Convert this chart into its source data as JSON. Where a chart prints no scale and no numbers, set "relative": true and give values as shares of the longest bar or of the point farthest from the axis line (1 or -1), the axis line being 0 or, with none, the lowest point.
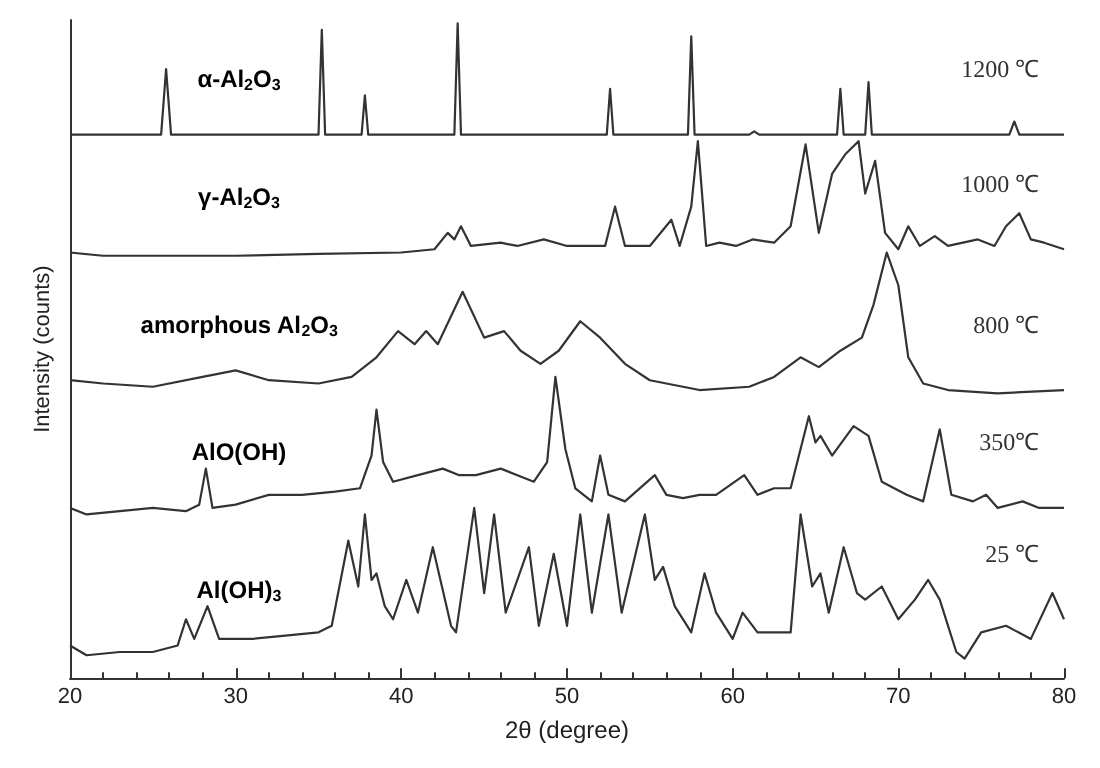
{
  "chart_data": {
    "type": "line",
    "relative": true,
    "xlabel": "2θ (degree)",
    "ylabel": "Intensity (counts)",
    "xlim": [
      20,
      80
    ],
    "xticks": [
      20,
      30,
      40,
      50,
      60,
      70,
      80
    ],
    "grid": false,
    "legend": false,
    "marker": "none",
    "line_style": "solid",
    "series": [
      {
        "name": "1200 ℃",
        "color": "#333333",
        "x": [
          20,
          25.5,
          25.8,
          26.1,
          35,
          35.2,
          35.4,
          37.6,
          37.8,
          38,
          43.2,
          43.4,
          43.6,
          52.4,
          52.6,
          52.8,
          57.3,
          57.5,
          57.7,
          61,
          61.3,
          61.6,
          66.3,
          66.5,
          66.7,
          68,
          68.2,
          68.4,
          76.7,
          77,
          77.3,
          80
        ],
        "values": [
          0.83,
          0.83,
          0.93,
          0.83,
          0.83,
          0.99,
          0.83,
          0.83,
          0.89,
          0.83,
          0.83,
          1,
          0.83,
          0.83,
          0.9,
          0.83,
          0.83,
          0.98,
          0.83,
          0.83,
          0.835,
          0.83,
          0.83,
          0.9,
          0.83,
          0.83,
          0.91,
          0.83,
          0.83,
          0.85,
          0.83,
          0.83
        ]
      },
      {
        "name": "1000 ℃",
        "color": "#333333",
        "x": [
          20,
          22,
          25,
          30,
          35,
          40,
          42,
          42.8,
          43.2,
          43.6,
          44.2,
          46,
          47,
          48.6,
          50,
          52.3,
          52.9,
          53.5,
          55,
          56.3,
          56.8,
          57.5,
          57.9,
          58.4,
          59.2,
          60.2,
          61.2,
          62.5,
          63.5,
          64.4,
          65.2,
          66,
          66.8,
          67.6,
          68,
          68.6,
          69.2,
          70,
          70.6,
          71.3,
          72.2,
          73,
          74.8,
          75.8,
          76.5,
          77.3,
          78,
          78.8,
          80
        ],
        "values": [
          0.65,
          0.645,
          0.645,
          0.645,
          0.648,
          0.65,
          0.655,
          0.68,
          0.67,
          0.69,
          0.66,
          0.665,
          0.66,
          0.67,
          0.66,
          0.66,
          0.72,
          0.66,
          0.66,
          0.7,
          0.66,
          0.72,
          0.82,
          0.66,
          0.665,
          0.66,
          0.67,
          0.665,
          0.69,
          0.815,
          0.68,
          0.77,
          0.8,
          0.82,
          0.74,
          0.79,
          0.68,
          0.655,
          0.69,
          0.66,
          0.675,
          0.66,
          0.67,
          0.66,
          0.69,
          0.71,
          0.67,
          0.665,
          0.655
        ]
      },
      {
        "name": "800 ℃",
        "color": "#333333",
        "x": [
          20,
          22,
          25,
          28,
          30,
          32,
          35,
          37,
          38.5,
          39.8,
          40.8,
          41.5,
          42.2,
          43.7,
          45,
          46.2,
          47.2,
          48.4,
          49.5,
          50.8,
          52,
          53.5,
          55,
          58,
          61,
          62.5,
          64.1,
          65.2,
          66.5,
          67.8,
          68.5,
          69.3,
          70,
          70.6,
          71.5,
          73,
          76,
          80
        ],
        "values": [
          0.455,
          0.45,
          0.445,
          0.46,
          0.47,
          0.455,
          0.45,
          0.46,
          0.49,
          0.53,
          0.51,
          0.53,
          0.51,
          0.59,
          0.52,
          0.53,
          0.5,
          0.48,
          0.5,
          0.545,
          0.52,
          0.48,
          0.455,
          0.44,
          0.445,
          0.46,
          0.49,
          0.475,
          0.5,
          0.52,
          0.57,
          0.65,
          0.6,
          0.49,
          0.45,
          0.44,
          0.435,
          0.44
        ]
      },
      {
        "name": "350℃",
        "color": "#333333",
        "x": [
          20,
          21,
          23,
          25,
          27,
          27.8,
          28.2,
          28.6,
          30,
          32,
          34,
          36,
          37.5,
          38.2,
          38.5,
          38.9,
          39.5,
          41,
          42.5,
          43.5,
          44.5,
          46,
          47,
          48,
          48.8,
          49.3,
          49.9,
          50.5,
          51.5,
          52,
          52.5,
          53.5,
          55.3,
          56,
          57,
          58,
          59,
          60.7,
          61.5,
          62.5,
          63.5,
          64.6,
          65,
          65.3,
          66,
          67.3,
          68.2,
          69,
          70.5,
          71.5,
          72.5,
          73.2,
          74.5,
          75.3,
          76,
          77.5,
          78.5,
          80
        ],
        "values": [
          0.26,
          0.25,
          0.255,
          0.26,
          0.255,
          0.265,
          0.32,
          0.26,
          0.265,
          0.28,
          0.28,
          0.285,
          0.29,
          0.34,
          0.41,
          0.33,
          0.3,
          0.31,
          0.32,
          0.31,
          0.31,
          0.32,
          0.31,
          0.3,
          0.33,
          0.46,
          0.35,
          0.29,
          0.27,
          0.34,
          0.28,
          0.27,
          0.31,
          0.28,
          0.275,
          0.28,
          0.28,
          0.31,
          0.28,
          0.29,
          0.29,
          0.4,
          0.36,
          0.37,
          0.34,
          0.385,
          0.37,
          0.3,
          0.28,
          0.27,
          0.38,
          0.28,
          0.27,
          0.28,
          0.26,
          0.27,
          0.26,
          0.26
        ]
      },
      {
        "name": "25 ℃",
        "color": "#333333",
        "x": [
          20,
          21,
          23,
          25,
          26.5,
          27,
          27.5,
          28.3,
          29,
          31,
          33,
          35,
          35.8,
          36.8,
          37.4,
          37.8,
          38.2,
          38.5,
          39,
          39.5,
          40.3,
          41,
          41.9,
          43,
          43.3,
          44.4,
          45,
          45.6,
          46.3,
          47.7,
          48.3,
          49.2,
          50,
          50.8,
          51.5,
          52.5,
          53.3,
          54.7,
          55.3,
          55.8,
          56.5,
          57.5,
          58.3,
          59,
          60,
          60.6,
          61.5,
          63.5,
          64.1,
          64.8,
          65.3,
          65.8,
          66.7,
          67.5,
          68,
          69,
          70,
          71,
          71.8,
          72.5,
          73.5,
          74,
          75,
          76.5,
          78,
          79.3,
          80
        ],
        "values": [
          0.05,
          0.035,
          0.04,
          0.04,
          0.05,
          0.09,
          0.06,
          0.11,
          0.06,
          0.06,
          0.065,
          0.07,
          0.08,
          0.21,
          0.14,
          0.25,
          0.15,
          0.16,
          0.11,
          0.09,
          0.15,
          0.1,
          0.2,
          0.08,
          0.07,
          0.26,
          0.13,
          0.25,
          0.1,
          0.2,
          0.08,
          0.19,
          0.08,
          0.25,
          0.1,
          0.25,
          0.1,
          0.25,
          0.15,
          0.17,
          0.11,
          0.07,
          0.16,
          0.1,
          0.06,
          0.1,
          0.07,
          0.07,
          0.25,
          0.14,
          0.16,
          0.1,
          0.2,
          0.13,
          0.12,
          0.14,
          0.09,
          0.12,
          0.15,
          0.12,
          0.04,
          0.03,
          0.07,
          0.08,
          0.06,
          0.13,
          0.09
        ]
      }
    ],
    "annotations": [
      "α-Al$_{2}$O$_{3}$",
      "γ-Al$_{2}$O$_{3}$",
      "amorphous Al$_{2}$O$_{3}$",
      "AlO(OH)",
      "Al(OH)$_{3}$"
    ]
  }
}
